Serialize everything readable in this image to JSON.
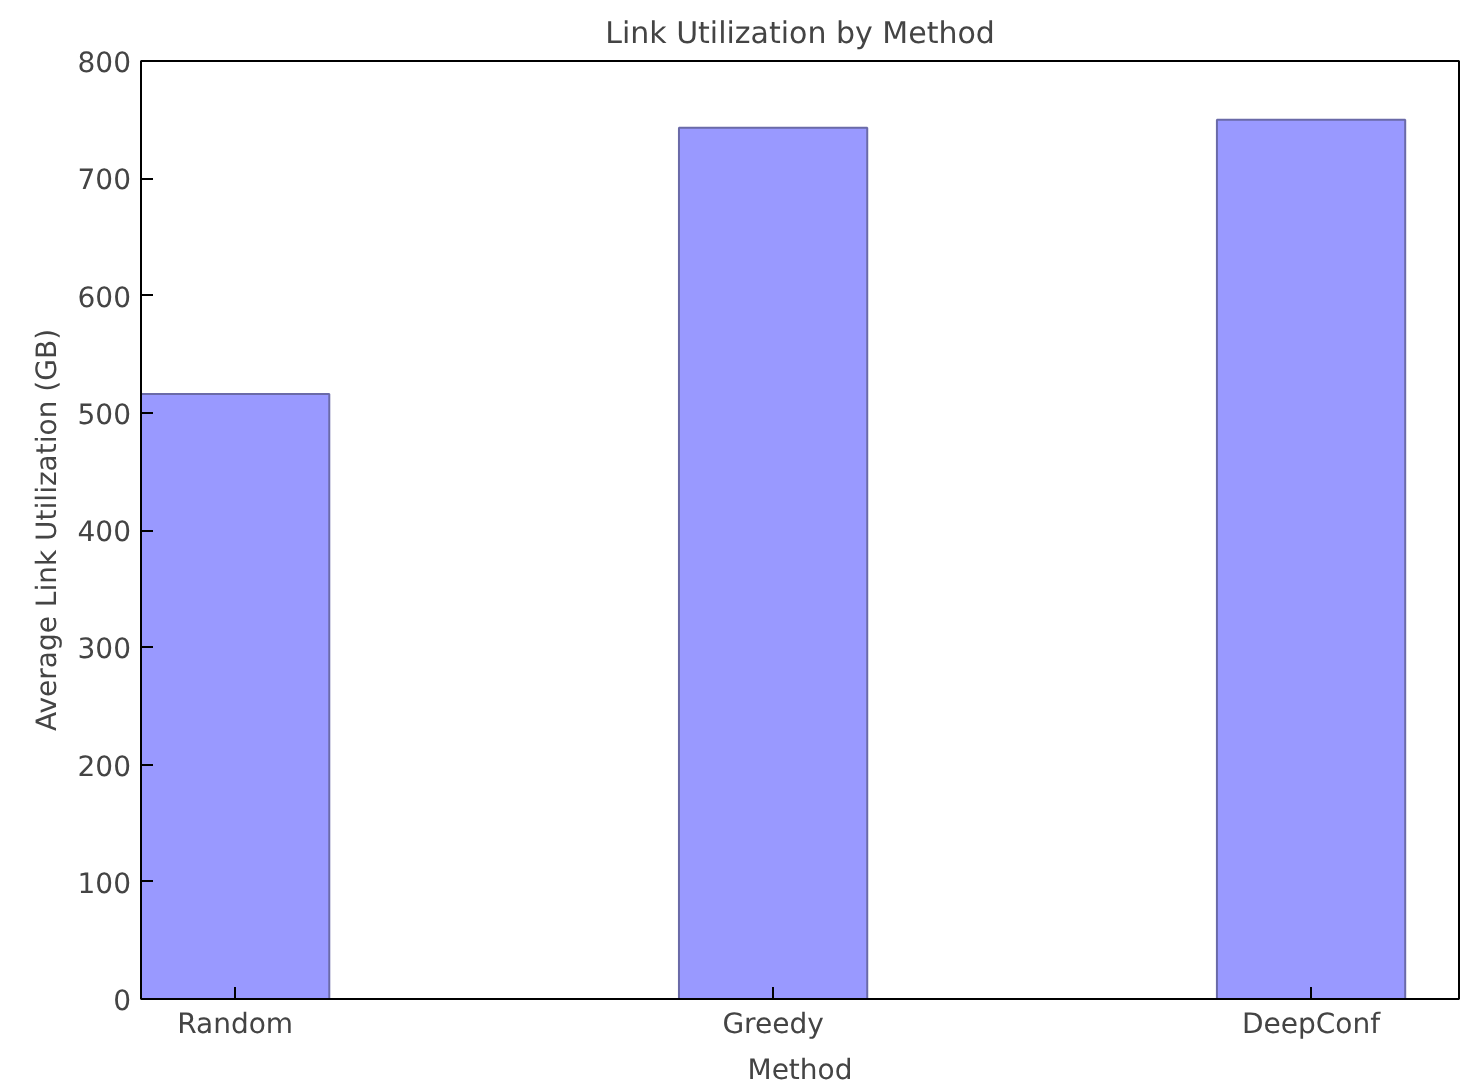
{
  "chart_data": {
    "type": "bar",
    "title": "Link Utilization by Method",
    "xlabel": "Method",
    "ylabel": "Average Link Utilization (GB)",
    "categories": [
      "Random",
      "Greedy",
      "DeepConf"
    ],
    "values": [
      516,
      743,
      750
    ],
    "color": "#9999ff",
    "ylim": [
      0,
      800
    ],
    "yticks": [
      0,
      100,
      200,
      300,
      400,
      500,
      600,
      700,
      800
    ],
    "grid": false
  }
}
